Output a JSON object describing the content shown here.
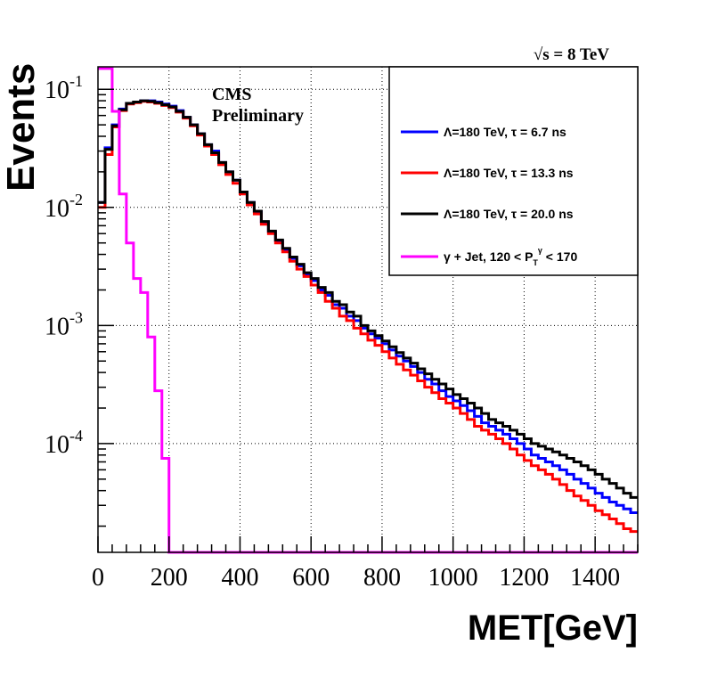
{
  "chart_data": {
    "type": "line",
    "drawstyle": "step-histogram",
    "ylabel": "Events",
    "xlabel": "MET[GeV]",
    "y_scale": "log",
    "xlim": [
      0,
      1520
    ],
    "ylim": [
      1.2e-05,
      0.155
    ],
    "bin_width": 20,
    "grid": true,
    "legend_position": "top-right",
    "energy_label": "√s = 8 TeV",
    "annotation_lines": [
      "CMS",
      "Preliminary"
    ],
    "x_ticks": [
      {
        "value": 0,
        "label": "0"
      },
      {
        "value": 200,
        "label": "200"
      },
      {
        "value": 400,
        "label": "400"
      },
      {
        "value": 600,
        "label": "600"
      },
      {
        "value": 800,
        "label": "800"
      },
      {
        "value": 1000,
        "label": "1000"
      },
      {
        "value": 1200,
        "label": "1200"
      },
      {
        "value": 1400,
        "label": "1400"
      }
    ],
    "y_ticks": [
      {
        "value": 0.1,
        "base": "10",
        "exp": "-1"
      },
      {
        "value": 0.01,
        "base": "10",
        "exp": "-2"
      },
      {
        "value": 0.001,
        "base": "10",
        "exp": "-3"
      },
      {
        "value": 0.0001,
        "base": "10",
        "exp": "-4"
      }
    ],
    "series": [
      {
        "name": "Λ=180 TeV, τ = 6.7 ns",
        "color": "#0000ff",
        "values": [
          0.011,
          0.032,
          0.05,
          0.068,
          0.076,
          0.078,
          0.08,
          0.08,
          0.078,
          0.075,
          0.072,
          0.066,
          0.058,
          0.05,
          0.042,
          0.034,
          0.03,
          0.024,
          0.02,
          0.017,
          0.0135,
          0.011,
          0.0092,
          0.0075,
          0.0062,
          0.0052,
          0.0044,
          0.0037,
          0.0032,
          0.0027,
          0.0024,
          0.002,
          0.0018,
          0.0015,
          0.0014,
          0.0012,
          0.0011,
          0.00095,
          0.00085,
          0.00078,
          0.0007,
          0.00062,
          0.00055,
          0.0005,
          0.00045,
          0.0004,
          0.00035,
          0.00032,
          0.00028,
          0.00025,
          0.00023,
          0.00021,
          0.00019,
          0.00017,
          0.00015,
          0.00014,
          0.00013,
          0.00012,
          0.00011,
          0.0001,
          9e-05,
          8e-05,
          7.5e-05,
          7e-05,
          6.5e-05,
          6e-05,
          5.5e-05,
          5e-05,
          4.6e-05,
          4.2e-05,
          3.8e-05,
          3.5e-05,
          3.2e-05,
          3e-05,
          2.8e-05,
          2.6e-05
        ]
      },
      {
        "name": "Λ=180 TeV, τ = 13.3 ns",
        "color": "#ff0000",
        "values": [
          0.01,
          0.028,
          0.048,
          0.066,
          0.075,
          0.077,
          0.079,
          0.078,
          0.076,
          0.073,
          0.07,
          0.064,
          0.057,
          0.049,
          0.041,
          0.033,
          0.028,
          0.023,
          0.019,
          0.016,
          0.013,
          0.0105,
          0.0088,
          0.0072,
          0.006,
          0.005,
          0.0042,
          0.0035,
          0.003,
          0.0026,
          0.0022,
          0.0019,
          0.0016,
          0.0014,
          0.0012,
          0.0011,
          0.00095,
          0.00085,
          0.00075,
          0.00068,
          0.0006,
          0.00053,
          0.00047,
          0.00042,
          0.00038,
          0.00034,
          0.0003,
          0.00027,
          0.00024,
          0.00022,
          0.0002,
          0.00018,
          0.00016,
          0.00014,
          0.00013,
          0.00012,
          0.00011,
          0.0001,
          9e-05,
          8e-05,
          7.2e-05,
          6.5e-05,
          6e-05,
          5.5e-05,
          5e-05,
          4.5e-05,
          4e-05,
          3.6e-05,
          3.3e-05,
          3e-05,
          2.7e-05,
          2.5e-05,
          2.3e-05,
          2.1e-05,
          1.9e-05,
          1.8e-05
        ]
      },
      {
        "name": "Λ=180 TeV, τ = 20.0 ns",
        "color": "#000000",
        "values": [
          0.011,
          0.031,
          0.049,
          0.067,
          0.076,
          0.078,
          0.08,
          0.079,
          0.077,
          0.074,
          0.071,
          0.065,
          0.058,
          0.05,
          0.042,
          0.034,
          0.029,
          0.024,
          0.02,
          0.017,
          0.0135,
          0.011,
          0.0093,
          0.0076,
          0.0063,
          0.0053,
          0.0045,
          0.0038,
          0.0033,
          0.0028,
          0.0025,
          0.0021,
          0.0019,
          0.0016,
          0.0015,
          0.0013,
          0.0012,
          0.001,
          0.0009,
          0.00082,
          0.00074,
          0.00066,
          0.00059,
          0.00053,
          0.00048,
          0.00043,
          0.00039,
          0.00035,
          0.00032,
          0.00029,
          0.00026,
          0.00024,
          0.00022,
          0.0002,
          0.00018,
          0.00016,
          0.00015,
          0.00014,
          0.00013,
          0.00012,
          0.00011,
          0.0001,
          9.5e-05,
          9e-05,
          8.5e-05,
          8e-05,
          7.5e-05,
          7e-05,
          6.5e-05,
          6e-05,
          5.5e-05,
          5e-05,
          4.6e-05,
          4.2e-05,
          3.8e-05,
          3.5e-05
        ]
      },
      {
        "name": "γ + Jet, 120 < P<sub>T</sub><sup>γ</sup> < 170",
        "color": "#ff00ff",
        "values": [
          0.15,
          0.15,
          0.065,
          0.013,
          0.005,
          0.0025,
          0.0019,
          0.0008,
          0.00028,
          7.5e-05,
          1e-05,
          1e-05,
          1e-05,
          1e-05,
          1e-05,
          1e-05,
          1e-05,
          1e-05,
          1e-05,
          1e-05,
          1e-05,
          1e-05,
          1e-05,
          1e-05,
          1e-05,
          1e-05,
          1e-05,
          1e-05,
          1e-05,
          1e-05,
          1e-05,
          1e-05,
          1e-05,
          1e-05,
          1e-05,
          1e-05,
          1e-05,
          1e-05,
          1e-05,
          1e-05,
          1e-05,
          1e-05,
          1e-05,
          1e-05,
          1e-05,
          1e-05,
          1e-05,
          1e-05,
          1e-05,
          1e-05,
          1e-05,
          1e-05,
          1e-05,
          1e-05,
          1e-05,
          1e-05,
          1e-05,
          1e-05,
          1e-05,
          1e-05,
          1e-05,
          1e-05,
          1e-05,
          1e-05,
          1e-05,
          1e-05,
          1e-05,
          1e-05,
          1e-05,
          1e-05,
          1e-05,
          1e-05,
          1e-05,
          1e-05,
          1e-05,
          1e-05
        ]
      }
    ]
  }
}
